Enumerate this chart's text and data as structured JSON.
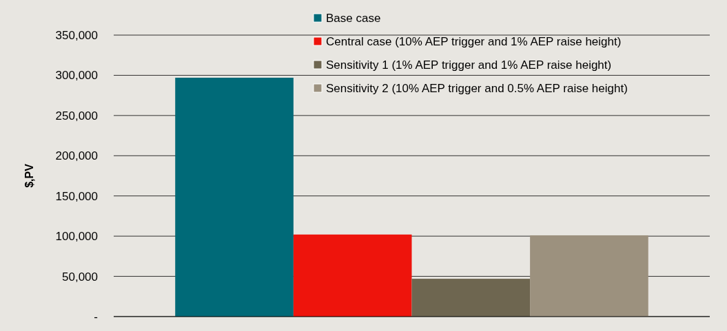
{
  "chart_data": {
    "type": "bar",
    "ylabel": "$,PV",
    "categories": [
      null
    ],
    "series": [
      {
        "name": "Base case",
        "color": "#006a78",
        "values": [
          297000
        ]
      },
      {
        "name": "Central case (10% AEP trigger and 1% AEP raise height)",
        "color": "#ee140c",
        "values": [
          102000
        ]
      },
      {
        "name": "Sensitivity 1 (1% AEP trigger and 1% AEP raise height)",
        "color": "#6e6650",
        "values": [
          47000
        ]
      },
      {
        "name": "Sensitivity 2 (10% AEP trigger and 0.5% AEP raise height)",
        "color": "#9c917e",
        "values": [
          101000
        ]
      }
    ],
    "ylim": [
      0,
      350000
    ],
    "yticks": [
      {
        "value": 0,
        "label": "-"
      },
      {
        "value": 50000,
        "label": "50,000"
      },
      {
        "value": 100000,
        "label": "100,000"
      },
      {
        "value": 150000,
        "label": "150,000"
      },
      {
        "value": 200000,
        "label": "200,000"
      },
      {
        "value": 250000,
        "label": "250,000"
      },
      {
        "value": 300000,
        "label": "300,000"
      },
      {
        "value": 350000,
        "label": "350,000"
      }
    ],
    "grid": "y",
    "legend": "top"
  }
}
